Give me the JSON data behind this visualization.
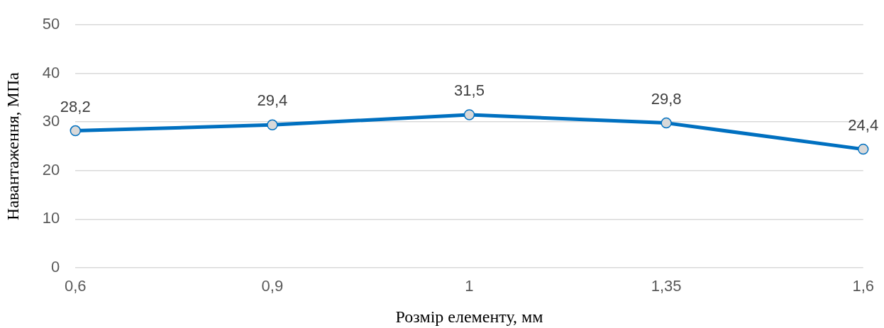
{
  "chart_data": {
    "type": "line",
    "xlabel": "Розмір елементу, мм",
    "ylabel": "Навантаження, МПа",
    "categories": [
      "0,6",
      "0,9",
      "1",
      "1,35",
      "1,6"
    ],
    "series": [
      {
        "color": "#0070c0",
        "values": [
          28.2,
          29.4,
          31.5,
          29.8,
          24.4
        ],
        "value_labels": [
          "28,2",
          "29,4",
          "31,5",
          "29,8",
          "24,4"
        ]
      }
    ],
    "ylim": [
      0,
      50
    ],
    "yticks": [
      0,
      10,
      20,
      30,
      40,
      50
    ],
    "grid": "y",
    "legend": false,
    "marker": "circle",
    "line_style": "solid"
  }
}
